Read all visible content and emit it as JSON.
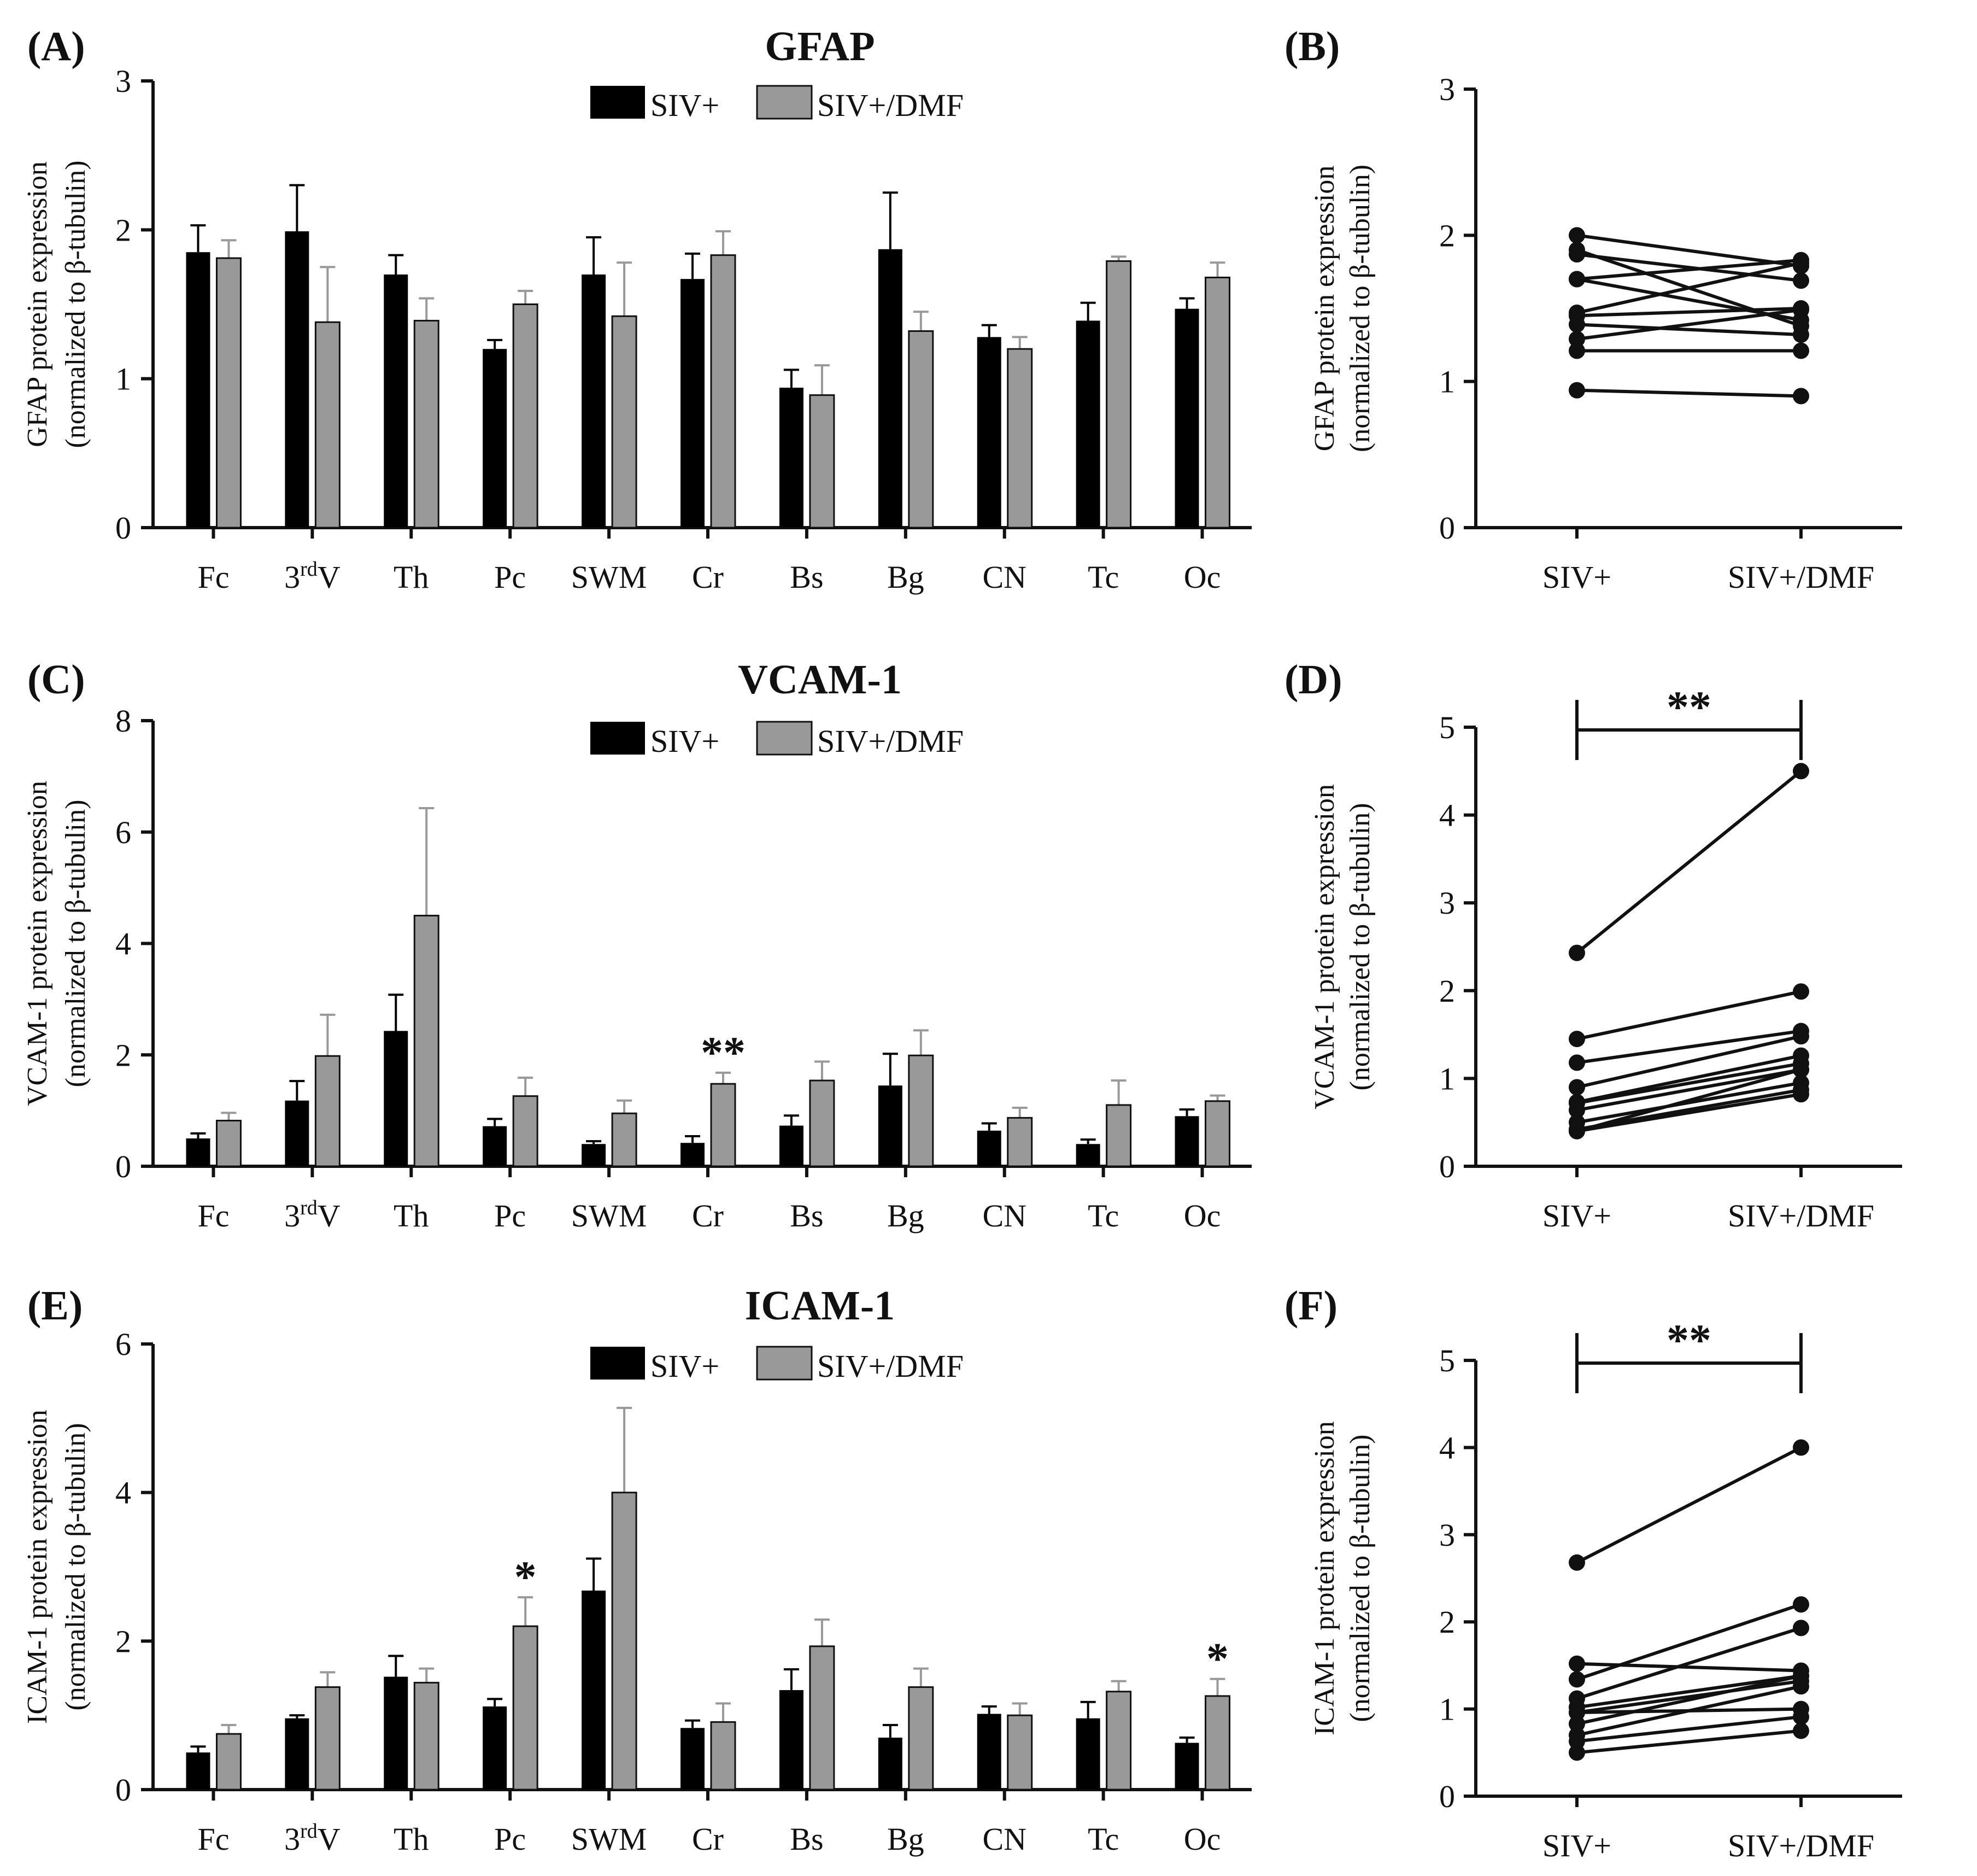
{
  "chart_data": [
    {
      "type": "bar",
      "panel_label": "(A)",
      "title": "GFAP",
      "ylabel_line1": "GFAP protein expression",
      "ylabel_line2": "(normalized to β-tubulin)",
      "ylim": [
        0,
        3
      ],
      "yticks": [
        0,
        1,
        2,
        3
      ],
      "categories": [
        "Fc",
        "3rdV",
        "Th",
        "Pc",
        "SWM",
        "Cr",
        "Bs",
        "Bg",
        "CN",
        "Tc",
        "Oc"
      ],
      "legend": [
        "SIV+",
        "SIV+/DMF"
      ],
      "series": [
        {
          "name": "SIV+",
          "color": "#000000",
          "values": [
            1.85,
            1.99,
            1.7,
            1.2,
            1.7,
            1.67,
            0.94,
            1.87,
            1.28,
            1.39,
            1.47
          ],
          "errors": [
            0.18,
            0.31,
            0.13,
            0.06,
            0.25,
            0.17,
            0.12,
            0.38,
            0.08,
            0.12,
            0.07
          ]
        },
        {
          "name": "SIV+/DMF",
          "color": "#999999",
          "values": [
            1.81,
            1.38,
            1.39,
            1.5,
            1.42,
            1.83,
            0.89,
            1.32,
            1.2,
            1.79,
            1.68
          ],
          "errors": [
            0.12,
            0.37,
            0.15,
            0.09,
            0.36,
            0.16,
            0.2,
            0.13,
            0.08,
            0.03,
            0.1
          ]
        }
      ],
      "annotations": []
    },
    {
      "type": "line",
      "panel_label": "(B)",
      "ylabel_line1": "GFAP protein expression",
      "ylabel_line2": "(normalized to β-tubulin)",
      "ylim": [
        0,
        3
      ],
      "yticks": [
        0,
        1,
        2,
        3
      ],
      "categories": [
        "SIV+",
        "SIV+/DMF"
      ],
      "pairs": [
        [
          2.0,
          1.79
        ],
        [
          1.9,
          1.38
        ],
        [
          1.87,
          1.69
        ],
        [
          1.7,
          1.83
        ],
        [
          1.7,
          1.42
        ],
        [
          1.47,
          1.81
        ],
        [
          1.45,
          1.5
        ],
        [
          1.39,
          1.32
        ],
        [
          1.29,
          1.49
        ],
        [
          1.21,
          1.21
        ],
        [
          0.94,
          0.9
        ]
      ],
      "significance": null
    },
    {
      "type": "bar",
      "panel_label": "(C)",
      "title": "VCAM-1",
      "ylabel_line1": "VCAM-1 protein expression",
      "ylabel_line2": "(normalized to β-tubulin)",
      "ylim": [
        0,
        8
      ],
      "yticks": [
        0,
        2,
        4,
        6,
        8
      ],
      "categories": [
        "Fc",
        "3rdV",
        "Th",
        "Pc",
        "SWM",
        "Cr",
        "Bs",
        "Bg",
        "CN",
        "Tc",
        "Oc"
      ],
      "legend": [
        "SIV+",
        "SIV+/DMF"
      ],
      "series": [
        {
          "name": "SIV+",
          "color": "#000000",
          "values": [
            0.5,
            1.18,
            2.43,
            0.72,
            0.4,
            0.42,
            0.73,
            1.45,
            0.64,
            0.4,
            0.9
          ],
          "errors": [
            0.09,
            0.35,
            0.65,
            0.13,
            0.05,
            0.12,
            0.18,
            0.57,
            0.13,
            0.08,
            0.12
          ]
        },
        {
          "name": "SIV+/DMF",
          "color": "#999999",
          "values": [
            0.82,
            1.98,
            4.5,
            1.26,
            0.95,
            1.48,
            1.54,
            1.99,
            0.87,
            1.1,
            1.17
          ],
          "errors": [
            0.14,
            0.74,
            1.93,
            0.33,
            0.23,
            0.2,
            0.34,
            0.45,
            0.18,
            0.44,
            0.1
          ]
        }
      ],
      "annotations": [
        {
          "category": "Cr",
          "text": "**"
        }
      ]
    },
    {
      "type": "line",
      "panel_label": "(D)",
      "ylabel_line1": "VCAM-1 protein expression",
      "ylabel_line2": "(normalized to β-tubulin)",
      "ylim": [
        0,
        5
      ],
      "yticks": [
        0,
        1,
        2,
        3,
        4,
        5
      ],
      "categories": [
        "SIV+",
        "SIV+/DMF"
      ],
      "pairs": [
        [
          2.43,
          4.5
        ],
        [
          1.45,
          1.99
        ],
        [
          1.18,
          1.54
        ],
        [
          0.9,
          1.48
        ],
        [
          0.73,
          1.26
        ],
        [
          0.72,
          1.17
        ],
        [
          0.64,
          1.1
        ],
        [
          0.5,
          0.95
        ],
        [
          0.42,
          0.87
        ],
        [
          0.4,
          1.1
        ],
        [
          0.4,
          0.82
        ]
      ],
      "significance": "**"
    },
    {
      "type": "bar",
      "panel_label": "(E)",
      "title": "ICAM-1",
      "ylabel_line1": "ICAM-1 protein expression",
      "ylabel_line2": "(normalized to β-tubulin)",
      "ylim": [
        0,
        6
      ],
      "yticks": [
        0,
        2,
        4,
        6
      ],
      "categories": [
        "Fc",
        "3rdV",
        "Th",
        "Pc",
        "SWM",
        "Cr",
        "Bs",
        "Bg",
        "CN",
        "Tc",
        "Oc"
      ],
      "legend": [
        "SIV+",
        "SIV+/DMF"
      ],
      "series": [
        {
          "name": "SIV+",
          "color": "#000000",
          "values": [
            0.5,
            0.96,
            1.52,
            1.12,
            2.68,
            0.83,
            1.34,
            0.7,
            1.02,
            0.96,
            0.63
          ],
          "errors": [
            0.08,
            0.04,
            0.28,
            0.1,
            0.43,
            0.1,
            0.28,
            0.17,
            0.1,
            0.22,
            0.07
          ]
        },
        {
          "name": "SIV+/DMF",
          "color": "#999999",
          "values": [
            0.75,
            1.38,
            1.44,
            2.2,
            4.0,
            0.91,
            1.93,
            1.38,
            1.0,
            1.32,
            1.26
          ],
          "errors": [
            0.12,
            0.2,
            0.19,
            0.39,
            1.14,
            0.25,
            0.36,
            0.25,
            0.16,
            0.14,
            0.23
          ]
        }
      ],
      "annotations": [
        {
          "category": "Pc",
          "text": "*"
        },
        {
          "category": "Oc",
          "text": "*"
        }
      ]
    },
    {
      "type": "line",
      "panel_label": "(F)",
      "ylabel_line1": "ICAM-1 protein expression",
      "ylabel_line2": "(normalized to β-tubulin)",
      "ylim": [
        0,
        5
      ],
      "yticks": [
        0,
        1,
        2,
        3,
        4,
        5
      ],
      "categories": [
        "SIV+",
        "SIV+/DMF"
      ],
      "pairs": [
        [
          2.68,
          4.0
        ],
        [
          1.52,
          1.44
        ],
        [
          1.34,
          2.2
        ],
        [
          1.12,
          1.93
        ],
        [
          1.02,
          1.38
        ],
        [
          0.96,
          1.0
        ],
        [
          0.96,
          1.32
        ],
        [
          0.83,
          1.38
        ],
        [
          0.7,
          1.26
        ],
        [
          0.63,
          0.91
        ],
        [
          0.5,
          0.75
        ]
      ],
      "significance": "**"
    }
  ]
}
